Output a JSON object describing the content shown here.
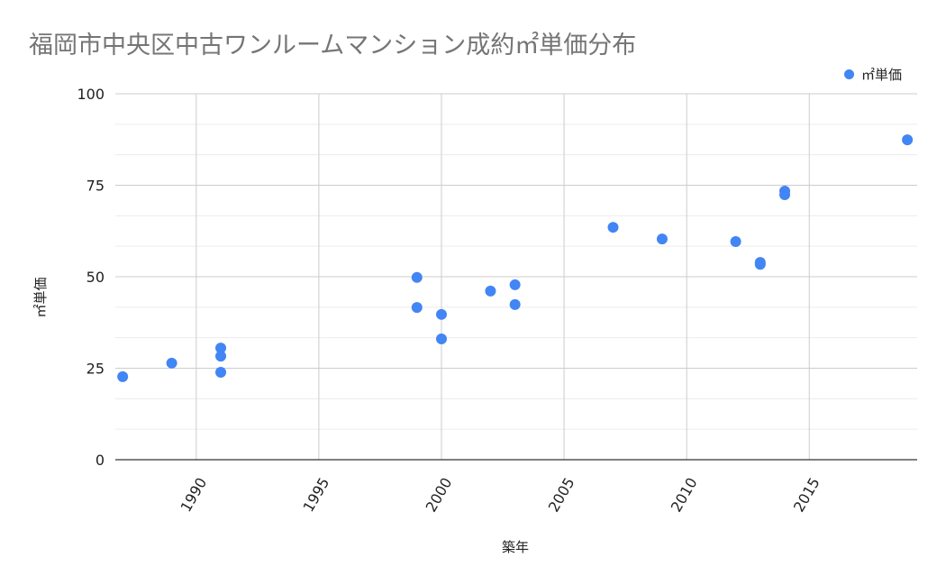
{
  "chart_data": {
    "type": "scatter",
    "title": "福岡市中央区中古ワンルームマンション成約㎡単価分布",
    "xlabel": "築年",
    "ylabel": "㎡単価",
    "xlim": [
      1986.7,
      2019.4
    ],
    "ylim": [
      0,
      100
    ],
    "x_ticks": [
      1990,
      1995,
      2000,
      2005,
      2010,
      2015
    ],
    "y_ticks": [
      0,
      25,
      50,
      75,
      100
    ],
    "grid": true,
    "legend_position": "top-right",
    "series": [
      {
        "name": "㎡単価",
        "color": "#4285f4",
        "points": [
          {
            "x": 1987,
            "y": 22.7
          },
          {
            "x": 1989,
            "y": 26.4
          },
          {
            "x": 1991,
            "y": 30.5
          },
          {
            "x": 1991,
            "y": 28.3
          },
          {
            "x": 1991,
            "y": 23.9
          },
          {
            "x": 1999,
            "y": 49.8
          },
          {
            "x": 1999,
            "y": 41.6
          },
          {
            "x": 2000,
            "y": 39.7
          },
          {
            "x": 2000,
            "y": 33.0
          },
          {
            "x": 2002,
            "y": 46.1
          },
          {
            "x": 2003,
            "y": 47.8
          },
          {
            "x": 2003,
            "y": 42.4
          },
          {
            "x": 2007,
            "y": 63.5
          },
          {
            "x": 2009,
            "y": 60.3
          },
          {
            "x": 2012,
            "y": 59.6
          },
          {
            "x": 2013,
            "y": 53.9
          },
          {
            "x": 2013,
            "y": 53.4
          },
          {
            "x": 2014,
            "y": 73.4
          },
          {
            "x": 2014,
            "y": 72.4
          },
          {
            "x": 2019,
            "y": 87.4
          }
        ]
      }
    ]
  },
  "legend": {
    "label": "㎡単価",
    "color": "#4285f4"
  }
}
